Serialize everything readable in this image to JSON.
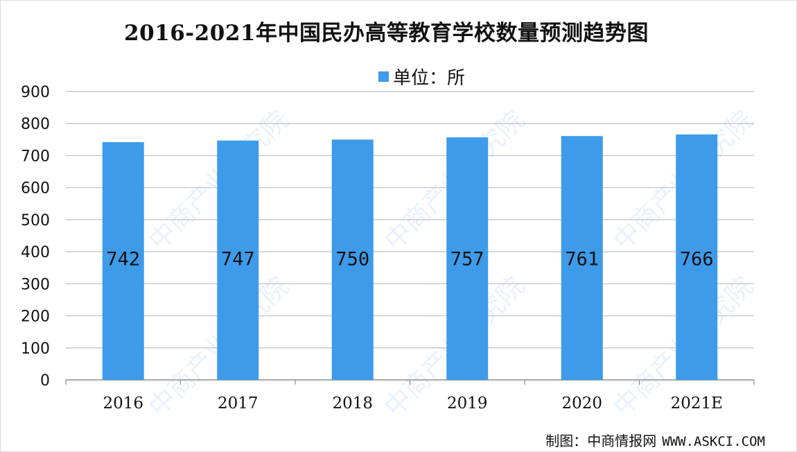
{
  "chart_data": {
    "type": "bar",
    "title": "2016-2021年中国民办高等教育学校数量预测趋势图",
    "legend": {
      "label": "单位：所",
      "placement": "top"
    },
    "categories": [
      "2016",
      "2017",
      "2018",
      "2019",
      "2020",
      "2021E"
    ],
    "series": [
      {
        "name": "单位：所",
        "values": [
          742,
          747,
          750,
          757,
          761,
          766
        ]
      }
    ],
    "ylim": [
      0,
      900
    ],
    "yticks": [
      0,
      100,
      200,
      300,
      400,
      500,
      600,
      700,
      800,
      900
    ],
    "grid": true,
    "bar_color": "#3d9be9"
  },
  "credit": {
    "label": "制图：中商情报网",
    "site": "WWW.ASKCI.COM"
  },
  "watermark": {
    "text": "中商产业研究院"
  }
}
